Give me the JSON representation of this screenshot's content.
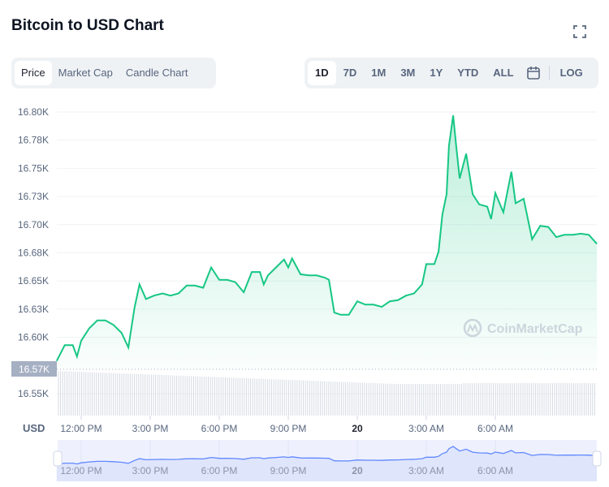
{
  "header": {
    "title": "Bitcoin to USD Chart",
    "fullscreen_icon": "expand-icon"
  },
  "chart_tabs": [
    {
      "label": "Price",
      "active": true
    },
    {
      "label": "Market Cap",
      "active": false
    },
    {
      "label": "Candle Chart",
      "active": false
    }
  ],
  "range_tabs": [
    {
      "label": "1D",
      "active": true
    },
    {
      "label": "7D",
      "active": false
    },
    {
      "label": "1M",
      "active": false
    },
    {
      "label": "3M",
      "active": false
    },
    {
      "label": "1Y",
      "active": false
    },
    {
      "label": "YTD",
      "active": false
    },
    {
      "label": "ALL",
      "active": false
    }
  ],
  "calendar_icon": "calendar-icon",
  "log_label": "LOG",
  "watermark": "CoinMarketCap",
  "colors": {
    "line": "#16c784",
    "navigator_line": "#6188ff",
    "navigator_bg": "#eef1fd",
    "current_price_bg": "#a6b0c3",
    "volume": "#cfd6e4"
  },
  "chart_data": {
    "type": "area",
    "currency_label": "USD",
    "current_price_label": "16.57K",
    "y_ticks": [
      {
        "value": 16.8,
        "label": "16.80K"
      },
      {
        "value": 16.775,
        "label": "16.78K"
      },
      {
        "value": 16.75,
        "label": "16.75K"
      },
      {
        "value": 16.725,
        "label": "16.73K"
      },
      {
        "value": 16.7,
        "label": "16.70K"
      },
      {
        "value": 16.675,
        "label": "16.68K"
      },
      {
        "value": 16.65,
        "label": "16.65K"
      },
      {
        "value": 16.625,
        "label": "16.63K"
      },
      {
        "value": 16.6,
        "label": "16.60K"
      },
      {
        "value": 16.55,
        "label": "16.55K"
      }
    ],
    "ylim": [
      16.525,
      16.81
    ],
    "x_ticks": [
      {
        "time": "12:00",
        "label": "12:00 PM",
        "bold": false
      },
      {
        "time": "15:00",
        "label": "3:00 PM",
        "bold": false
      },
      {
        "time": "18:00",
        "label": "6:00 PM",
        "bold": false
      },
      {
        "time": "21:00",
        "label": "9:00 PM",
        "bold": false
      },
      {
        "time": "24:00",
        "label": "20",
        "bold": true
      },
      {
        "time": "27:00",
        "label": "3:00 AM",
        "bold": false
      },
      {
        "time": "30:00",
        "label": "6:00 AM",
        "bold": false
      }
    ],
    "grid": true,
    "series": [
      {
        "points": [
          [
            "10:56",
            16.579
          ],
          [
            "11:17",
            16.593
          ],
          [
            "11:38",
            16.593
          ],
          [
            "11:49",
            16.583
          ],
          [
            "12:00",
            16.597
          ],
          [
            "12:21",
            16.608
          ],
          [
            "12:42",
            16.615
          ],
          [
            "13:03",
            16.615
          ],
          [
            "13:24",
            16.611
          ],
          [
            "13:45",
            16.604
          ],
          [
            "14:03",
            16.591
          ],
          [
            "14:19",
            16.626
          ],
          [
            "14:32",
            16.647
          ],
          [
            "14:49",
            16.634
          ],
          [
            "15:10",
            16.637
          ],
          [
            "15:32",
            16.639
          ],
          [
            "15:53",
            16.637
          ],
          [
            "16:14",
            16.639
          ],
          [
            "16:35",
            16.646
          ],
          [
            "16:56",
            16.646
          ],
          [
            "17:18",
            16.644
          ],
          [
            "17:39",
            16.662
          ],
          [
            "18:00",
            16.651
          ],
          [
            "18:21",
            16.651
          ],
          [
            "18:42",
            16.649
          ],
          [
            "19:04",
            16.64
          ],
          [
            "19:25",
            16.658
          ],
          [
            "19:46",
            16.658
          ],
          [
            "19:56",
            16.647
          ],
          [
            "20:07",
            16.655
          ],
          [
            "20:28",
            16.662
          ],
          [
            "20:49",
            16.669
          ],
          [
            "21:00",
            16.662
          ],
          [
            "21:10",
            16.67
          ],
          [
            "21:32",
            16.656
          ],
          [
            "21:53",
            16.655
          ],
          [
            "22:14",
            16.655
          ],
          [
            "22:35",
            16.653
          ],
          [
            "22:46",
            16.651
          ],
          [
            "23:00",
            16.622
          ],
          [
            "23:17",
            16.62
          ],
          [
            "23:38",
            16.62
          ],
          [
            "24:00",
            16.632
          ],
          [
            "24:21",
            16.629
          ],
          [
            "24:42",
            16.629
          ],
          [
            "25:04",
            16.627
          ],
          [
            "25:25",
            16.632
          ],
          [
            "25:46",
            16.633
          ],
          [
            "26:07",
            16.637
          ],
          [
            "26:28",
            16.639
          ],
          [
            "26:49",
            16.647
          ],
          [
            "27:00",
            16.665
          ],
          [
            "27:21",
            16.665
          ],
          [
            "27:32",
            16.676
          ],
          [
            "27:42",
            16.709
          ],
          [
            "27:53",
            16.727
          ],
          [
            "27:59",
            16.77
          ],
          [
            "28:10",
            16.797
          ],
          [
            "28:18",
            16.77
          ],
          [
            "28:27",
            16.741
          ],
          [
            "28:44",
            16.763
          ],
          [
            "29:01",
            16.727
          ],
          [
            "29:18",
            16.718
          ],
          [
            "29:39",
            16.716
          ],
          [
            "29:49",
            16.705
          ],
          [
            "30:00",
            16.728
          ],
          [
            "30:21",
            16.711
          ],
          [
            "30:42",
            16.747
          ],
          [
            "30:53",
            16.719
          ],
          [
            "31:14",
            16.723
          ],
          [
            "31:36",
            16.687
          ],
          [
            "31:57",
            16.699
          ],
          [
            "32:18",
            16.698
          ],
          [
            "32:39",
            16.689
          ],
          [
            "33:00",
            16.691
          ],
          [
            "33:22",
            16.691
          ],
          [
            "33:43",
            16.692
          ],
          [
            "34:04",
            16.691
          ],
          [
            "34:25",
            16.683
          ]
        ]
      }
    ]
  }
}
